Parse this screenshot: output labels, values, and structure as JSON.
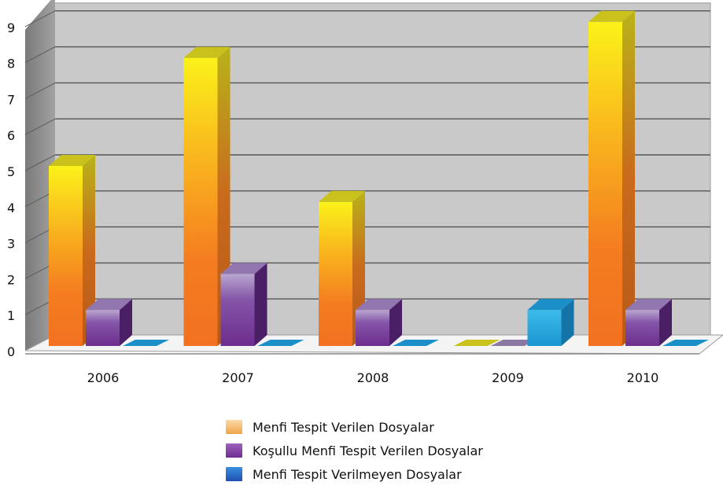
{
  "chart_data": {
    "type": "bar",
    "categories": [
      "2006",
      "2007",
      "2008",
      "2009",
      "2010"
    ],
    "series": [
      {
        "name": "Menfi Tespit Verilen Dosyalar",
        "values": [
          5,
          8,
          4,
          0,
          9
        ]
      },
      {
        "name": "Koşullu Menfi Tespit Verilen Dosyalar",
        "values": [
          1,
          2,
          1,
          0,
          1
        ]
      },
      {
        "name": "Menfi Tespit Verilmeyen Dosyalar",
        "values": [
          0,
          0,
          0,
          1,
          0
        ]
      }
    ],
    "ylim": [
      0,
      9
    ],
    "yticks": [
      "0",
      "1",
      "2",
      "3",
      "4",
      "5",
      "6",
      "7",
      "8",
      "9"
    ],
    "grid": true,
    "legend_position": "bottom",
    "style": "3d",
    "colors": {
      "series1_top": "#f5ee1a",
      "series1_bottom": "#f47d20",
      "series2": "#7d3e9a",
      "series3": "#1fa3dc",
      "plot_background": "#c8c8c8",
      "side_wall": "#8c8c8c"
    }
  }
}
